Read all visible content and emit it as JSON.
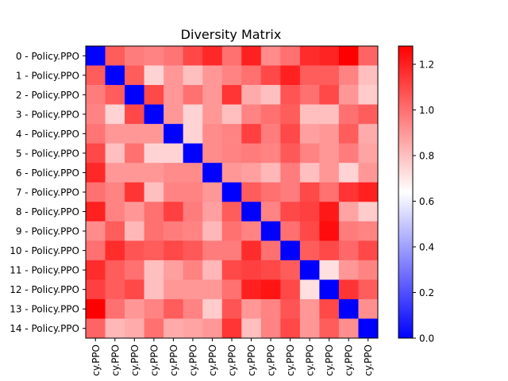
{
  "chart_data": {
    "type": "heatmap",
    "title": "Diversity Matrix",
    "row_labels": [
      "0 - Policy.PPO",
      "1 - Policy.PPO",
      "2 - Policy.PPO",
      "3 - Policy.PPO",
      "4 - Policy.PPO",
      "5 - Policy.PPO",
      "6 - Policy.PPO",
      "7 - Policy.PPO",
      "8 - Policy.PPO",
      "9 - Policy.PPO",
      "10 - Policy.PPO",
      "11 - Policy.PPO",
      "12 - Policy.PPO",
      "13 - Policy.PPO",
      "14 - Policy.PPO"
    ],
    "col_labels_visible": [
      "cy.PPO",
      "cy.PPO",
      "cy.PPO",
      "cy.PPO",
      "cy.PPO",
      "cy.PPO",
      "cy.PPO",
      "cy.PPO",
      "cy.PPO",
      "cy.PPO",
      "cy.PPO",
      "cy.PPO",
      "cy.PPO",
      "cy.PPO",
      "cy.PPO"
    ],
    "values": [
      [
        0.0,
        1.05,
        0.97,
        0.95,
        0.99,
        1.1,
        1.18,
        1.0,
        1.2,
        0.93,
        1.0,
        1.17,
        1.19,
        1.28,
        1.03
      ],
      [
        1.05,
        0.0,
        1.05,
        0.75,
        0.9,
        0.8,
        0.9,
        0.95,
        1.0,
        1.1,
        1.2,
        1.05,
        1.05,
        0.95,
        0.8
      ],
      [
        0.97,
        1.05,
        0.0,
        1.1,
        0.9,
        1.0,
        0.9,
        1.15,
        0.85,
        0.8,
        1.07,
        1.0,
        1.1,
        0.9,
        0.77
      ],
      [
        0.95,
        0.75,
        1.1,
        0.0,
        0.9,
        0.75,
        0.9,
        0.8,
        0.95,
        1.0,
        1.05,
        0.8,
        0.8,
        1.0,
        1.05
      ],
      [
        0.99,
        0.9,
        0.9,
        0.9,
        0.0,
        0.75,
        0.93,
        0.95,
        1.12,
        0.97,
        1.1,
        0.88,
        0.9,
        1.05,
        0.85
      ],
      [
        1.1,
        0.8,
        1.0,
        0.75,
        0.75,
        0.0,
        0.93,
        0.95,
        0.97,
        0.95,
        1.06,
        0.95,
        0.9,
        0.97,
        0.87
      ],
      [
        1.18,
        0.9,
        0.9,
        0.9,
        0.93,
        0.93,
        0.0,
        0.9,
        0.88,
        0.82,
        0.97,
        0.8,
        0.9,
        0.75,
        0.9
      ],
      [
        1.0,
        0.95,
        1.15,
        0.8,
        0.95,
        0.95,
        0.9,
        0.0,
        1.05,
        1.0,
        0.97,
        1.1,
        1.0,
        1.15,
        1.2
      ],
      [
        1.2,
        0.95,
        0.9,
        1.0,
        1.12,
        0.97,
        0.88,
        1.05,
        0.0,
        0.95,
        1.1,
        1.12,
        1.22,
        0.87,
        0.77
      ],
      [
        0.93,
        1.05,
        0.82,
        1.0,
        0.97,
        0.95,
        0.82,
        1.0,
        0.95,
        0.0,
        1.0,
        1.1,
        1.25,
        0.97,
        0.95
      ],
      [
        1.0,
        1.17,
        1.07,
        1.05,
        1.1,
        1.06,
        0.97,
        0.97,
        1.17,
        1.0,
        0.0,
        1.05,
        1.1,
        1.02,
        1.1
      ],
      [
        1.17,
        1.05,
        1.0,
        0.8,
        0.88,
        0.95,
        0.82,
        1.1,
        1.12,
        1.1,
        1.05,
        0.0,
        0.72,
        0.9,
        0.95
      ],
      [
        1.12,
        1.05,
        1.1,
        0.8,
        0.9,
        0.9,
        0.9,
        1.0,
        1.2,
        1.23,
        1.1,
        0.72,
        0.0,
        1.15,
        1.05
      ],
      [
        1.28,
        1.0,
        0.9,
        0.95,
        1.05,
        0.95,
        0.77,
        1.07,
        0.9,
        0.95,
        1.07,
        0.9,
        1.1,
        0.0,
        0.92
      ],
      [
        1.03,
        0.82,
        0.85,
        1.0,
        0.85,
        0.87,
        0.9,
        1.15,
        0.8,
        0.95,
        1.1,
        0.9,
        1.05,
        0.92,
        0.0
      ]
    ],
    "vmin": 0.0,
    "vmax": 1.28,
    "colormap": "bwr",
    "colormap_colors": [
      "#0000ff",
      "#ffffff",
      "#ff0000"
    ],
    "colorbar_ticks": [
      "0.0",
      "0.2",
      "0.4",
      "0.6",
      "0.8",
      "1.0",
      "1.2"
    ],
    "colorbar_tick_values": [
      0.0,
      0.2,
      0.4,
      0.6,
      0.8,
      1.0,
      1.2
    ]
  }
}
